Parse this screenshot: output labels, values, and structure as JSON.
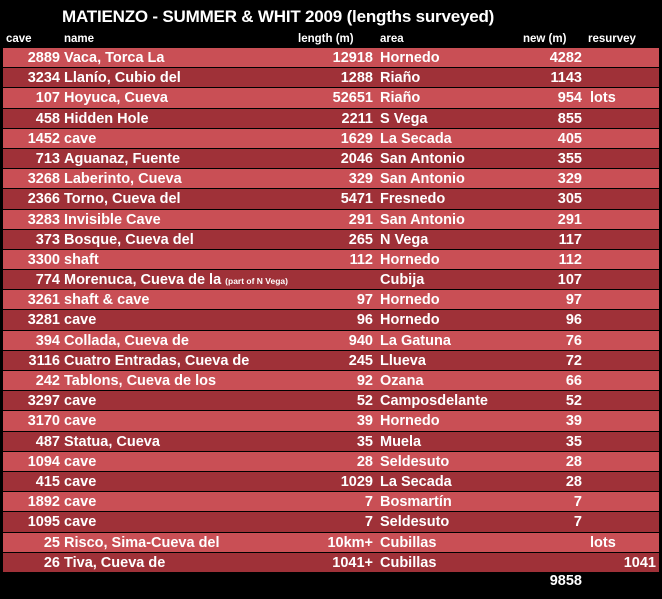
{
  "title": "MATIENZO - SUMMER & WHIT 2009 (lengths surveyed)",
  "headers": {
    "cave": "cave",
    "name": "name",
    "length": "length (m)",
    "area": "area",
    "new": "new (m)",
    "resurvey": "resurvey"
  },
  "colors": {
    "row_light": "#c94f55",
    "row_dark": "#9f3138",
    "background": "#000000",
    "text": "#ffffff"
  },
  "rows": [
    {
      "cave": "2889",
      "name": "Vaca, Torca La",
      "note": "",
      "length": "12918",
      "area": "Hornedo",
      "new": "4282",
      "resurvey": ""
    },
    {
      "cave": "3234",
      "name": "Llanío, Cubio del",
      "note": "",
      "length": "1288",
      "area": "Riaño",
      "new": "1143",
      "resurvey": ""
    },
    {
      "cave": "107",
      "name": "Hoyuca, Cueva",
      "note": "",
      "length": "52651",
      "area": "Riaño",
      "new": "954",
      "resurvey": "lots"
    },
    {
      "cave": "458",
      "name": "Hidden Hole",
      "note": "",
      "length": "2211",
      "area": "S Vega",
      "new": "855",
      "resurvey": ""
    },
    {
      "cave": "1452",
      "name": "cave",
      "note": "",
      "length": "1629",
      "area": "La Secada",
      "new": "405",
      "resurvey": ""
    },
    {
      "cave": "713",
      "name": "Aguanaz, Fuente",
      "note": "",
      "length": "2046",
      "area": "San Antonio",
      "new": "355",
      "resurvey": ""
    },
    {
      "cave": "3268",
      "name": "Laberinto, Cueva",
      "note": "",
      "length": "329",
      "area": "San Antonio",
      "new": "329",
      "resurvey": ""
    },
    {
      "cave": "2366",
      "name": "Torno, Cueva del",
      "note": "",
      "length": "5471",
      "area": "Fresnedo",
      "new": "305",
      "resurvey": ""
    },
    {
      "cave": "3283",
      "name": "Invisible Cave",
      "note": "",
      "length": "291",
      "area": "San Antonio",
      "new": "291",
      "resurvey": ""
    },
    {
      "cave": "373",
      "name": "Bosque, Cueva del",
      "note": "",
      "length": "265",
      "area": "N Vega",
      "new": "117",
      "resurvey": ""
    },
    {
      "cave": "3300",
      "name": "shaft",
      "note": "",
      "length": "112",
      "area": "Hornedo",
      "new": "112",
      "resurvey": ""
    },
    {
      "cave": "774",
      "name": "Morenuca, Cueva de la",
      "note": "(part of N Vega)",
      "length": "",
      "area": "Cubija",
      "new": "107",
      "resurvey": ""
    },
    {
      "cave": "3261",
      "name": "shaft & cave",
      "note": "",
      "length": "97",
      "area": "Hornedo",
      "new": "97",
      "resurvey": ""
    },
    {
      "cave": "3281",
      "name": "cave",
      "note": "",
      "length": "96",
      "area": "Hornedo",
      "new": "96",
      "resurvey": ""
    },
    {
      "cave": "394",
      "name": "Collada, Cueva de",
      "note": "",
      "length": "940",
      "area": "La Gatuna",
      "new": "76",
      "resurvey": ""
    },
    {
      "cave": "3116",
      "name": "Cuatro Entradas, Cueva de",
      "note": "",
      "length": "245",
      "area": "Llueva",
      "new": "72",
      "resurvey": ""
    },
    {
      "cave": "242",
      "name": "Tablons, Cueva de los",
      "note": "",
      "length": "92",
      "area": "Ozana",
      "new": "66",
      "resurvey": ""
    },
    {
      "cave": "3297",
      "name": "cave",
      "note": "",
      "length": "52",
      "area": "Camposdelante",
      "new": "52",
      "resurvey": ""
    },
    {
      "cave": "3170",
      "name": "cave",
      "note": "",
      "length": "39",
      "area": "Hornedo",
      "new": "39",
      "resurvey": ""
    },
    {
      "cave": "487",
      "name": "Statua, Cueva",
      "note": "",
      "length": "35",
      "area": "Muela",
      "new": "35",
      "resurvey": ""
    },
    {
      "cave": "1094",
      "name": "cave",
      "note": "",
      "length": "28",
      "area": "Seldesuto",
      "new": "28",
      "resurvey": ""
    },
    {
      "cave": "415",
      "name": "cave",
      "note": "",
      "length": "1029",
      "area": "La Secada",
      "new": "28",
      "resurvey": ""
    },
    {
      "cave": "1892",
      "name": "cave",
      "note": "",
      "length": "7",
      "area": "Bosmartín",
      "new": "7",
      "resurvey": ""
    },
    {
      "cave": "1095",
      "name": "cave",
      "note": "",
      "length": "7",
      "area": "Seldesuto",
      "new": "7",
      "resurvey": ""
    },
    {
      "cave": "25",
      "name": "Risco, Sima-Cueva del",
      "note": "",
      "length": "10km+",
      "area": "Cubillas",
      "new": "",
      "resurvey": "lots"
    },
    {
      "cave": "26",
      "name": "Tiva, Cueva de",
      "note": "",
      "length": "1041+",
      "area": "Cubillas",
      "new": "",
      "resurvey": "1041"
    }
  ],
  "total_new": "9858"
}
